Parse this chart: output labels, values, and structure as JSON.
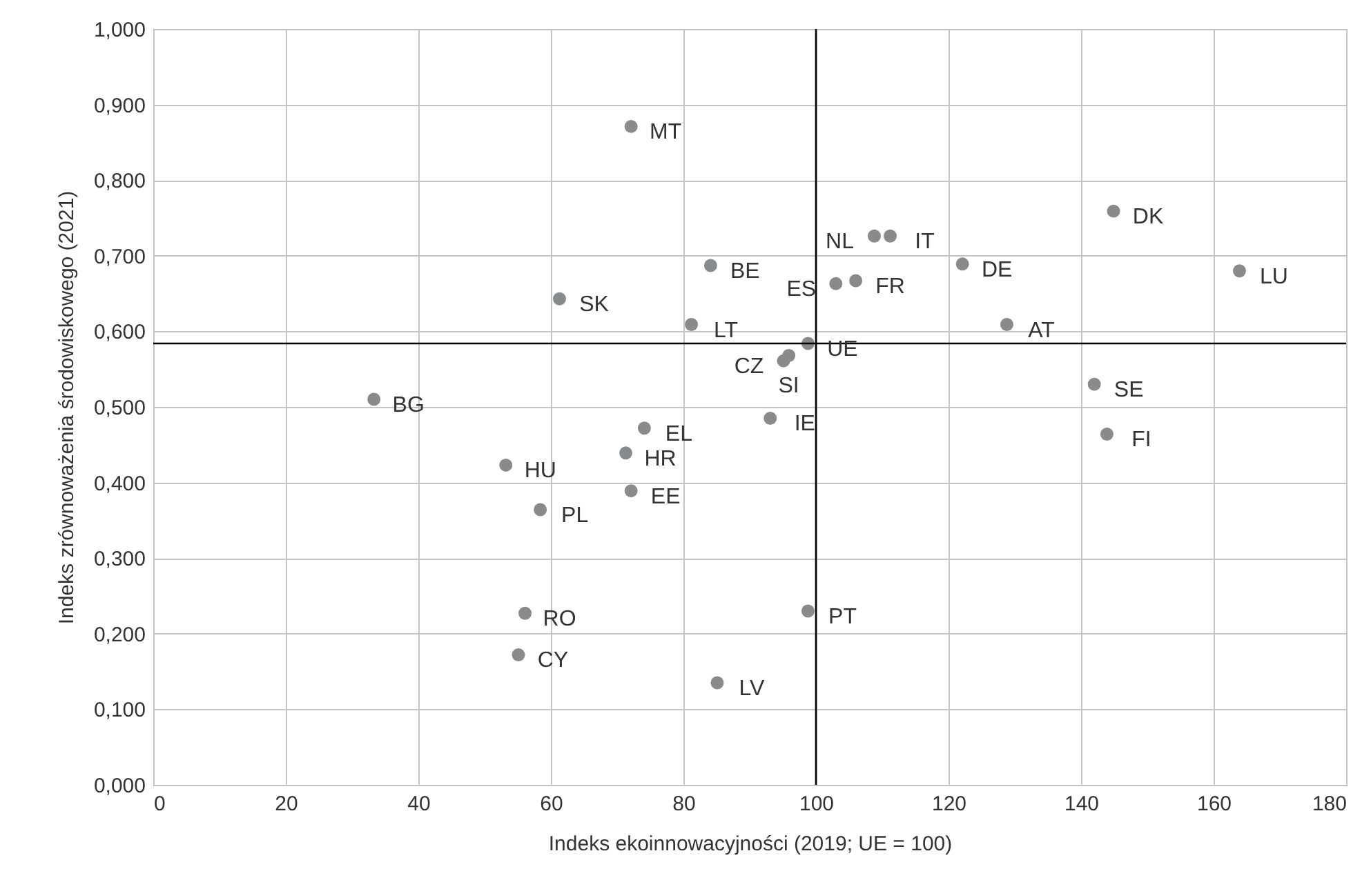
{
  "chart_data": {
    "type": "scatter",
    "xlabel": "Indeks ekoinnowacyjności (2019; UE = 100)",
    "ylabel": "Indeks zrównoważenia środowiskowego (2021)",
    "x": [
      72.1,
      84.1,
      61.3,
      81.2,
      98.8,
      95.1,
      95.9,
      33.3,
      74.1,
      93.1,
      71.3,
      53.2,
      58.4,
      72.1,
      56.1,
      55.1,
      85.1,
      98.8,
      108.8,
      111.2,
      103,
      106,
      122.1,
      144.9,
      163.9,
      128.8,
      142,
      143.9
    ],
    "series": [
      {
        "color": "#898a8c",
        "values": [
          0.871,
          0.687,
          0.643,
          0.609,
          0.584,
          0.561,
          0.568,
          0.51,
          0.472,
          0.485,
          0.439,
          0.423,
          0.364,
          0.389,
          0.227,
          0.172,
          0.135,
          0.23,
          0.726,
          0.726,
          0.663,
          0.667,
          0.689,
          0.759,
          0.68,
          0.609,
          0.53,
          0.464
        ]
      }
    ],
    "marker": "circle",
    "grid": true,
    "legend": false,
    "xlim": [
      0,
      180
    ],
    "xticks": [
      0,
      20,
      40,
      60,
      80,
      100,
      120,
      140,
      160,
      180
    ],
    "ylim": [
      0,
      1
    ],
    "yticks": [
      {
        "value": 0,
        "label": "0,000"
      },
      {
        "value": 0.1,
        "label": "0,100"
      },
      {
        "value": 0.2,
        "label": "0,200"
      },
      {
        "value": 0.3,
        "label": "0,300"
      },
      {
        "value": 0.4,
        "label": "0,400"
      },
      {
        "value": 0.5,
        "label": "0,500"
      },
      {
        "value": 0.6,
        "label": "0,600"
      },
      {
        "value": 0.7,
        "label": "0,700"
      },
      {
        "value": 0.8,
        "label": "0,800"
      },
      {
        "value": 0.9,
        "label": "0,900"
      },
      {
        "value": 1,
        "label": "1,000"
      }
    ],
    "ref_lines": [
      {
        "axis": "x",
        "value": 100,
        "color": "#000000"
      },
      {
        "axis": "y",
        "value": 0.584,
        "color": "#000000"
      }
    ],
    "annotations": [
      {
        "text": "MT",
        "x": 72.1,
        "y": 0.871
      },
      {
        "text": "BE",
        "x": 84.1,
        "y": 0.687
      },
      {
        "text": "SK",
        "x": 61.3,
        "y": 0.643
      },
      {
        "text": "LT",
        "x": 81.2,
        "y": 0.609
      },
      {
        "text": "UE",
        "x": 98.8,
        "y": 0.584
      },
      {
        "text": "CZ",
        "x": 95.1,
        "y": 0.561
      },
      {
        "text": "SI",
        "x": 95.9,
        "y": 0.568
      },
      {
        "text": "BG",
        "x": 33.3,
        "y": 0.51
      },
      {
        "text": "EL",
        "x": 74.1,
        "y": 0.472
      },
      {
        "text": "IE",
        "x": 93.1,
        "y": 0.485
      },
      {
        "text": "HR",
        "x": 71.3,
        "y": 0.439
      },
      {
        "text": "HU",
        "x": 53.2,
        "y": 0.423
      },
      {
        "text": "PL",
        "x": 58.4,
        "y": 0.364
      },
      {
        "text": "EE",
        "x": 72.1,
        "y": 0.389
      },
      {
        "text": "RO",
        "x": 56.1,
        "y": 0.227
      },
      {
        "text": "CY",
        "x": 55.1,
        "y": 0.172
      },
      {
        "text": "LV",
        "x": 85.1,
        "y": 0.135
      },
      {
        "text": "PT",
        "x": 98.8,
        "y": 0.23
      },
      {
        "text": "NL",
        "x": 108.8,
        "y": 0.726
      },
      {
        "text": "IT",
        "x": 111.2,
        "y": 0.726
      },
      {
        "text": "ES",
        "x": 103,
        "y": 0.663
      },
      {
        "text": "FR",
        "x": 106,
        "y": 0.667
      },
      {
        "text": "DE",
        "x": 122.1,
        "y": 0.689
      },
      {
        "text": "DK",
        "x": 144.9,
        "y": 0.759
      },
      {
        "text": "LU",
        "x": 163.9,
        "y": 0.68
      },
      {
        "text": "AT",
        "x": 128.8,
        "y": 0.609
      },
      {
        "text": "SE",
        "x": 142,
        "y": 0.53
      },
      {
        "text": "FI",
        "x": 143.9,
        "y": 0.464
      }
    ]
  }
}
